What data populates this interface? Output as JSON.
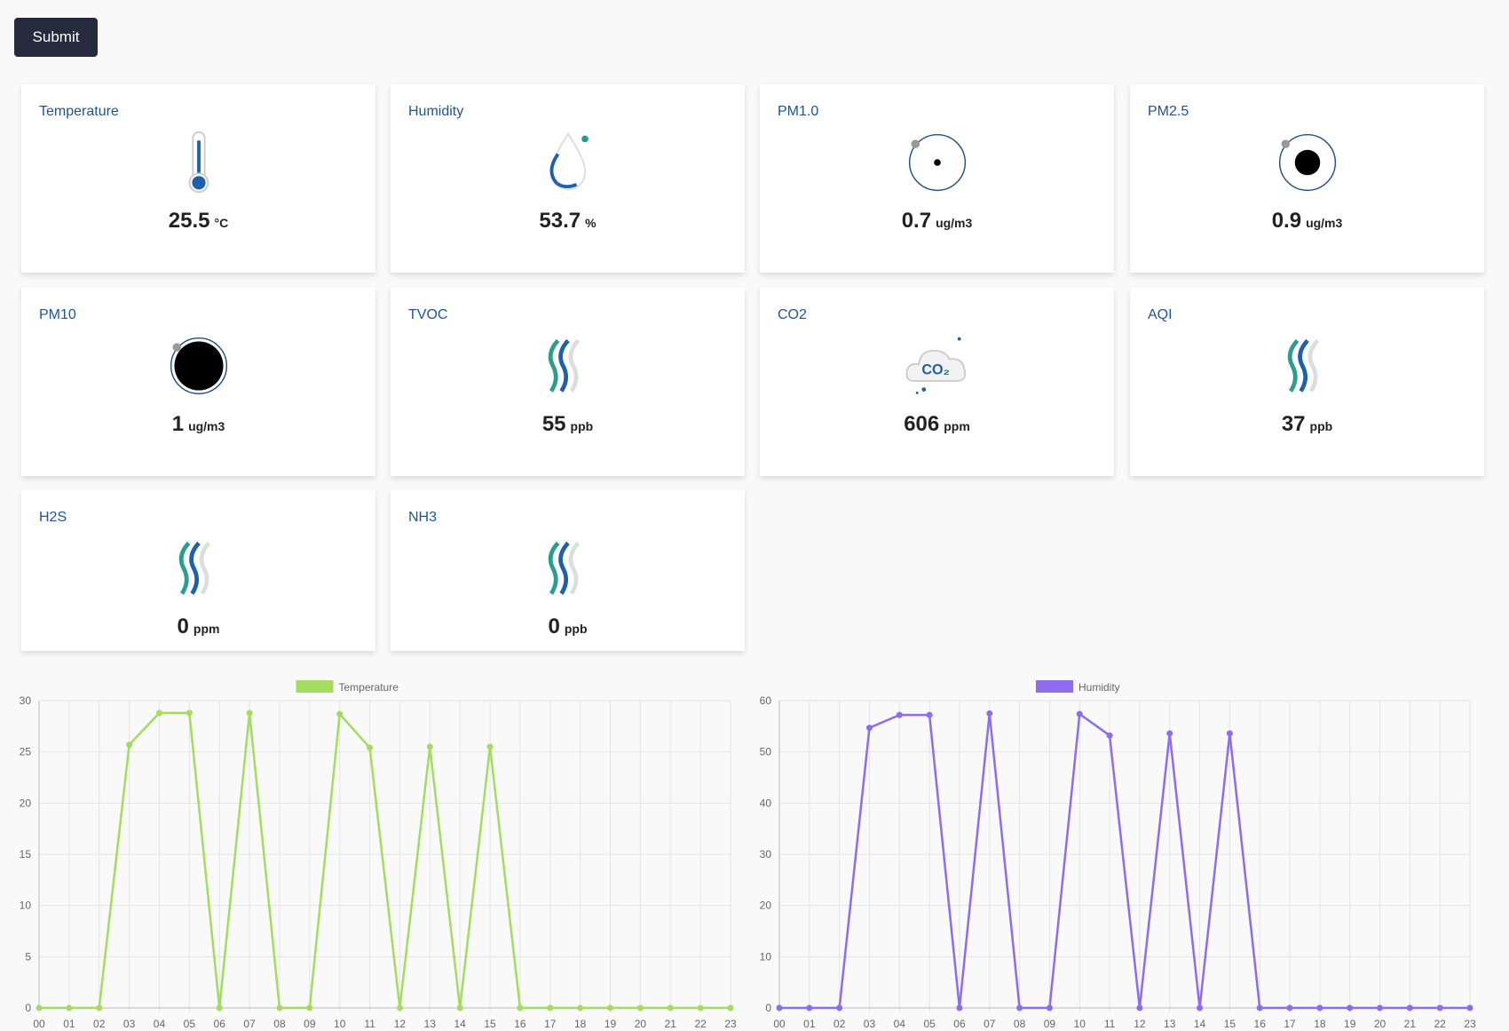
{
  "submit": "Submit",
  "cards": [
    {
      "title": "Temperature",
      "value": 25.5,
      "unit": "°C"
    },
    {
      "title": "Humidity",
      "value": 53.7,
      "unit": "%"
    },
    {
      "title": "PM1.0",
      "value": 0.7,
      "unit": "ug/m3"
    },
    {
      "title": "PM2.5",
      "value": 0.9,
      "unit": "ug/m3"
    },
    {
      "title": "PM10",
      "value": 1,
      "unit": "ug/m3"
    },
    {
      "title": "TVOC",
      "value": 55,
      "unit": "ppb"
    },
    {
      "title": "CO2",
      "value": 606,
      "unit": "ppm",
      "icon_text": "CO₂"
    },
    {
      "title": "AQI",
      "value": 37,
      "unit": "ppb"
    },
    {
      "title": "H2S",
      "value": 0,
      "unit": "ppm"
    },
    {
      "title": "NH3",
      "value": 0,
      "unit": "ppb"
    }
  ],
  "chart_data": [
    {
      "type": "line",
      "categories": [
        "00",
        "01",
        "02",
        "03",
        "04",
        "05",
        "06",
        "07",
        "08",
        "09",
        "10",
        "11",
        "12",
        "13",
        "14",
        "15",
        "16",
        "17",
        "18",
        "19",
        "20",
        "21",
        "22",
        "23"
      ],
      "series": [
        {
          "name": "Temperature",
          "color": "#a3dc5e",
          "values": [
            0,
            0,
            0,
            25.7,
            28.8,
            28.8,
            0,
            28.8,
            0,
            0,
            28.7,
            25.4,
            0,
            25.5,
            0,
            25.5,
            0,
            0,
            0,
            0,
            0,
            0,
            0,
            0
          ]
        }
      ],
      "ylim": [
        0,
        30
      ],
      "yticks": [
        0,
        5,
        10,
        15,
        20,
        25,
        30
      ],
      "grid": true
    },
    {
      "type": "line",
      "categories": [
        "00",
        "01",
        "02",
        "03",
        "04",
        "05",
        "06",
        "07",
        "08",
        "09",
        "10",
        "11",
        "12",
        "13",
        "14",
        "15",
        "16",
        "17",
        "18",
        "19",
        "20",
        "21",
        "22",
        "23"
      ],
      "series": [
        {
          "name": "Humidity",
          "color": "#8e6cef",
          "values": [
            0,
            0,
            0,
            54.7,
            57.2,
            57.2,
            0,
            57.5,
            0,
            0,
            57.4,
            53.2,
            0,
            53.6,
            0,
            53.6,
            0,
            0,
            0,
            0,
            0,
            0,
            0,
            0
          ]
        }
      ],
      "ylim": [
        0,
        60
      ],
      "yticks": [
        0,
        10,
        20,
        30,
        40,
        50,
        60
      ],
      "grid": true
    }
  ]
}
